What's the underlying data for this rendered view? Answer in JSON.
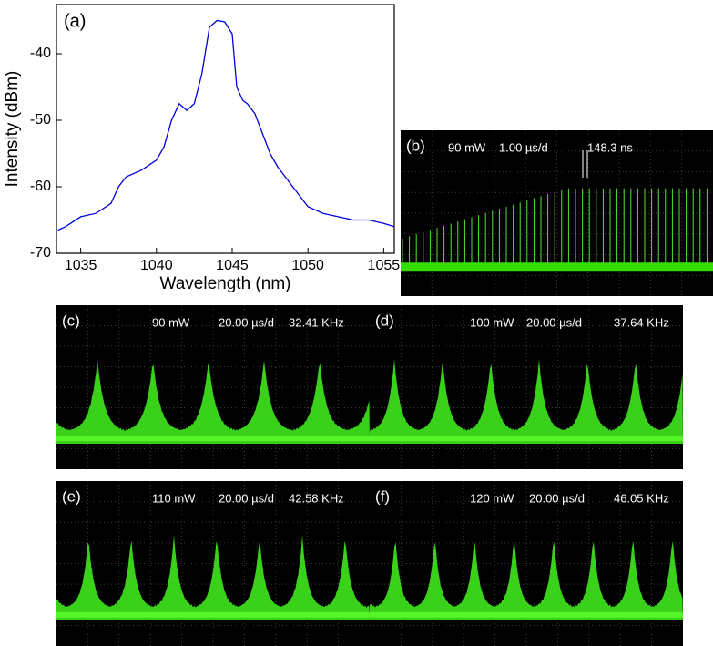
{
  "chart_data": [
    {
      "type": "line",
      "label": "(a)",
      "x_label": "Wavelength (nm)",
      "y_label": "Intensity (dBm)",
      "xlim": [
        1033.4,
        1055.7
      ],
      "ylim": [
        -70,
        -32.6
      ],
      "xticks": [
        1035,
        1040,
        1045,
        1050,
        1055
      ],
      "yticks": [
        -70,
        -60,
        -50,
        -40
      ],
      "series": [
        {
          "color": "#0000dd",
          "x": [
            1033.5,
            1034,
            1035,
            1036,
            1037,
            1037.5,
            1038,
            1039,
            1040,
            1040.5,
            1041,
            1041.5,
            1042,
            1042.5,
            1043,
            1043.5,
            1044,
            1044.5,
            1045,
            1045.3,
            1045.7,
            1046,
            1046.5,
            1047,
            1047.5,
            1048,
            1049,
            1050,
            1051,
            1052,
            1053,
            1054,
            1055,
            1055.7
          ],
          "values": [
            -66.5,
            -66,
            -64.5,
            -64,
            -62.5,
            -60,
            -58.5,
            -57.5,
            -56,
            -54,
            -50,
            -47.5,
            -48.5,
            -47.5,
            -43,
            -36,
            -35,
            -35.2,
            -37,
            -45,
            -47,
            -47.5,
            -49,
            -52,
            -55,
            -57,
            -60,
            -63,
            -64,
            -64.5,
            -65,
            -65,
            -65.5,
            -66
          ]
        }
      ]
    },
    {
      "type": "oscilloscope",
      "label": "(b)",
      "annotations": [
        "90 mW",
        "1.00 µs/d",
        "148.3 ns"
      ]
    },
    {
      "type": "oscilloscope",
      "label": "(c)",
      "annotations": [
        "90 mW",
        "20.00 µs/d",
        "32.41 KHz"
      ]
    },
    {
      "type": "oscilloscope",
      "label": "(d)",
      "annotations": [
        "100 mW",
        "20.00 µs/d",
        "37.64 KHz"
      ]
    },
    {
      "type": "oscilloscope",
      "label": "(e)",
      "annotations": [
        "110 mW",
        "20.00 µs/d",
        "42.58 KHz"
      ]
    },
    {
      "type": "oscilloscope",
      "label": "(f)",
      "annotations": [
        "120 mW",
        "20.00 µs/d",
        "46.05 KHz"
      ]
    }
  ]
}
